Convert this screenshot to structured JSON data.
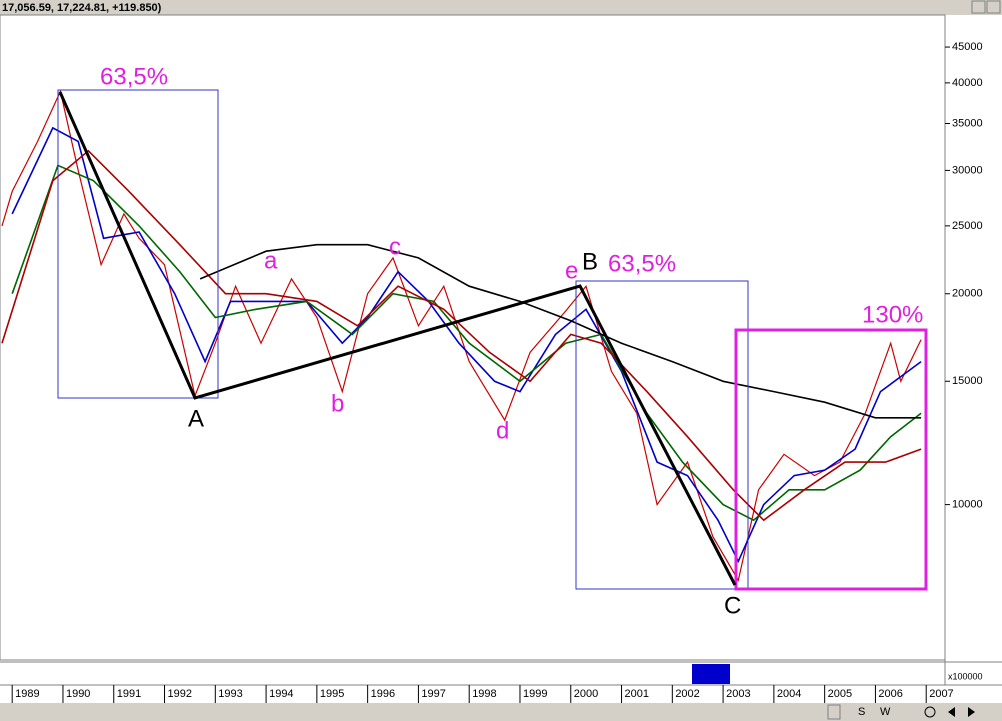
{
  "chart_data": {
    "type": "line",
    "title": "17,056.59, 17,224.81, +119.850)",
    "log_scale": true,
    "xlim": [
      1988.76,
      2007.37
    ],
    "ylim": [
      6000,
      50000
    ],
    "xticks": [
      1989,
      1990,
      1991,
      1992,
      1993,
      1994,
      1995,
      1996,
      1997,
      1998,
      1999,
      2000,
      2001,
      2002,
      2003,
      2004,
      2005,
      2006,
      2007
    ],
    "yticks": [
      10000,
      15000,
      20000,
      25000,
      30000,
      35000,
      40000,
      45000
    ],
    "volume_label": "x100000",
    "series": [
      {
        "color": "#cc0000",
        "x": [
          1988.8,
          1989.0,
          1989.5,
          1989.95,
          1990.3,
          1990.75,
          1991.2,
          1991.5,
          1992.0,
          1992.6,
          1993.0,
          1993.4,
          1993.9,
          1994.5,
          1995.0,
          1995.5,
          1996.0,
          1996.5,
          1997.0,
          1997.5,
          1998.0,
          1998.7,
          1999.2,
          1999.9,
          2000.3,
          2000.8,
          2001.3,
          2001.7,
          2002.3,
          2002.8,
          2003.3,
          2003.7,
          2004.2,
          2004.8,
          2005.3,
          2005.8,
          2006.3,
          2006.5,
          2006.9
        ],
        "values": [
          25000,
          28000,
          33000,
          38900,
          30000,
          22000,
          26000,
          24000,
          22000,
          14300,
          17000,
          20500,
          17000,
          21000,
          18500,
          14500,
          20000,
          22500,
          18000,
          20500,
          16000,
          13200,
          16500,
          18900,
          20500,
          15500,
          13500,
          10000,
          11500,
          9000,
          7800,
          10500,
          11800,
          11000,
          11500,
          13500,
          17000,
          15000,
          17200
        ]
      },
      {
        "color": "#0000cc",
        "x": [
          1989.0,
          1989.8,
          1990.3,
          1990.8,
          1991.5,
          1992.2,
          1992.8,
          1993.3,
          1994.0,
          1994.8,
          1995.5,
          1996.0,
          1996.6,
          1997.2,
          1997.8,
          1998.5,
          1999.0,
          1999.7,
          2000.3,
          2001.0,
          2001.7,
          2002.3,
          2002.9,
          2003.3,
          2003.8,
          2004.4,
          2005.0,
          2005.6,
          2006.1,
          2006.9
        ],
        "values": [
          26000,
          34500,
          33000,
          24000,
          24500,
          20000,
          16000,
          19500,
          19500,
          19500,
          17000,
          18500,
          21500,
          19500,
          17000,
          15000,
          14500,
          17500,
          19000,
          15500,
          11500,
          11000,
          9500,
          8300,
          10000,
          11000,
          11200,
          12000,
          14500,
          16000
        ]
      },
      {
        "color": "#006600",
        "x": [
          1989.0,
          1989.9,
          1990.6,
          1991.5,
          1992.3,
          1993.0,
          1993.8,
          1994.8,
          1995.7,
          1996.5,
          1997.3,
          1998.0,
          1999.0,
          1999.9,
          2000.6,
          2001.5,
          2002.2,
          2003.0,
          2003.6,
          2004.3,
          2005.0,
          2005.7,
          2006.3,
          2006.9
        ],
        "values": [
          20000,
          30500,
          29000,
          25000,
          21500,
          18500,
          19000,
          19500,
          17500,
          20000,
          19500,
          17000,
          15000,
          17000,
          17500,
          13500,
          11500,
          10000,
          9500,
          10500,
          10500,
          11200,
          12500,
          13500
        ]
      },
      {
        "color": "#aa0000",
        "x": [
          1988.8,
          1989.8,
          1990.5,
          1991.3,
          1992.3,
          1993.2,
          1994.0,
          1995.0,
          1995.8,
          1996.6,
          1997.5,
          1998.4,
          1999.2,
          2000.0,
          2000.6,
          2001.5,
          2002.3,
          2003.2,
          2003.8,
          2004.6,
          2005.4,
          2006.2,
          2006.9
        ],
        "values": [
          17000,
          29000,
          32000,
          28000,
          23500,
          20000,
          20000,
          19500,
          18000,
          20500,
          19000,
          16500,
          15000,
          17500,
          17000,
          14500,
          12500,
          10500,
          9500,
          10500,
          11500,
          11500,
          12000
        ]
      },
      {
        "color": "#000000",
        "x": [
          1992.7,
          1994.0,
          1995.0,
          1996.0,
          1997.0,
          1998.0,
          1999.0,
          2000.0,
          2001.0,
          2002.0,
          2003.0,
          2004.0,
          2005.0,
          2006.0,
          2006.9
        ],
        "values": [
          21000,
          23000,
          23500,
          23500,
          22500,
          20500,
          19500,
          18300,
          17000,
          16000,
          15000,
          14500,
          14000,
          13300,
          13300
        ]
      }
    ],
    "annotations": [
      "63,5%",
      "63,5%",
      "130%",
      "A",
      "B",
      "C",
      "a",
      "b",
      "c",
      "d",
      "e"
    ]
  },
  "toolbar": [
    "S",
    "W"
  ]
}
